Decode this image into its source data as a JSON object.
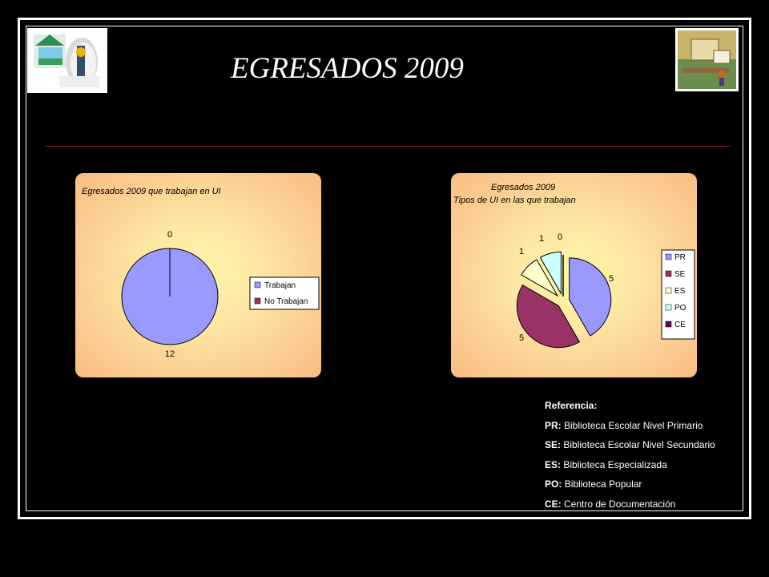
{
  "slide": {
    "title": "EGRESADOS 2009"
  },
  "chart_data": [
    {
      "type": "pie",
      "title": "Egresados 2009  que trabajan en UI",
      "categories": [
        "Trabajan",
        "No Trabajan"
      ],
      "values": [
        12,
        0
      ],
      "data_labels": [
        "12",
        "0"
      ],
      "colors": [
        "#9999ff",
        "#993366"
      ],
      "legend": "right"
    },
    {
      "type": "pie",
      "title": "Egresados 2009",
      "subtitle": "Tipos de UI en las que trabajan",
      "categories": [
        "PR",
        "SE",
        "ES",
        "PO",
        "CE"
      ],
      "values": [
        5,
        5,
        1,
        1,
        0
      ],
      "data_labels": [
        "5",
        "5",
        "1",
        "1",
        "0"
      ],
      "colors": [
        "#9999ff",
        "#993366",
        "#ffffcc",
        "#ccffff",
        "#660066"
      ],
      "legend": "right",
      "exploded": true
    }
  ],
  "reference": {
    "heading": "Referencia:",
    "items": [
      {
        "code": "PR:",
        "text": "Biblioteca Escolar Nivel Primario"
      },
      {
        "code": "SE:",
        "text": "Biblioteca Escolar Nivel Secundario"
      },
      {
        "code": "ES:",
        "text": "Biblioteca Especializada"
      },
      {
        "code": "PO:",
        "text": "Biblioteca Popular"
      },
      {
        "code": "CE:",
        "text": "Centro de Documentación"
      }
    ]
  }
}
